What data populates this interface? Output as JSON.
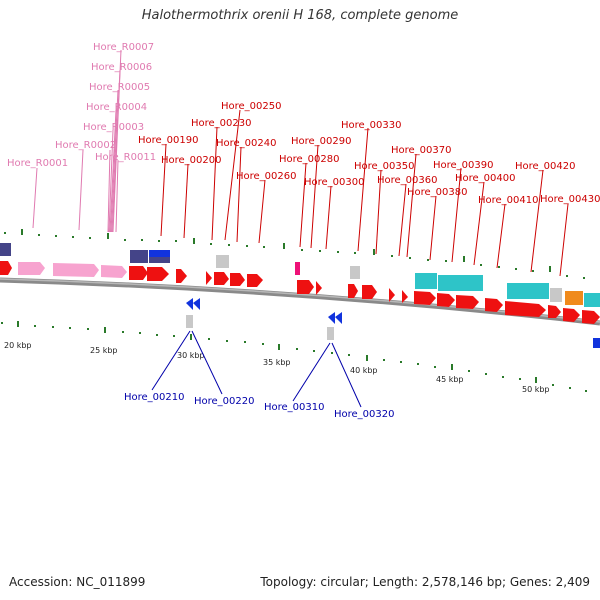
{
  "title": "Halothermothrix orenii H 168, complete genome",
  "footer": {
    "accession": "Accession: NC_011899",
    "summary": "Topology: circular; Length: 2,578,146 bp; Genes: 2,409"
  },
  "colors": {
    "rna_label": "#e07ab0",
    "top_label": "#cc0000",
    "bottom_label": "#0000aa",
    "cds_red": "#ee1111",
    "rna_pink": "#f7a3cf",
    "teal": "#2ec4c8",
    "navy": "#444488",
    "grey": "#c8c8c8",
    "orange": "#f08a1c",
    "magenta": "#ee1177",
    "blue_arrow": "#1133dd"
  },
  "rna_labels": [
    "Hore_R0007",
    "Hore_R0006",
    "Hore_R0005",
    "Hore_R0004",
    "Hore_R0003",
    "Hore_R0002",
    "Hore_R0011",
    "Hore_R0001"
  ],
  "top_labels": [
    "Hore_00250",
    "Hore_00230",
    "Hore_00240",
    "Hore_00190",
    "Hore_00200",
    "Hore_00260",
    "Hore_00330",
    "Hore_00290",
    "Hore_00280",
    "Hore_00300",
    "Hore_00370",
    "Hore_00350",
    "Hore_00360",
    "Hore_00390",
    "Hore_00420",
    "Hore_00380",
    "Hore_00400",
    "Hore_00410",
    "Hore_00430"
  ],
  "bottom_labels": [
    "Hore_00210",
    "Hore_00220",
    "Hore_00310",
    "Hore_00320"
  ],
  "scale_labels": [
    "20 kbp",
    "25 kbp",
    "30 kbp",
    "35 kbp",
    "40 kbp",
    "45 kbp",
    "50 kbp"
  ]
}
